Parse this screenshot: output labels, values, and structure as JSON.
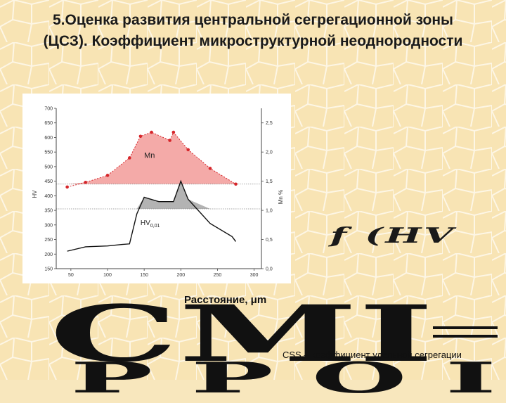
{
  "slide": {
    "title_line1": "5.Оценка развития центральной сегрегационной зоны",
    "title_line2": "(ЦСЗ). Коэффициент микроструктурной неоднородности",
    "formula_fragment": "f (HV",
    "big_text": "CMI",
    "big_text_lower": "P P O I",
    "css_caption": "CSS – коэффициент удельной сегрегации"
  },
  "chart_data": {
    "type": "line",
    "xlabel": "Расстояние, μm",
    "ylabel_left": "HV",
    "ylabel_right": "Mn %",
    "xlim": [
      30,
      310
    ],
    "ylim_left": [
      150,
      700
    ],
    "ylim_right": [
      0,
      2.75
    ],
    "x_ticks": [
      50,
      100,
      150,
      200,
      250,
      300
    ],
    "y_left_ticks": [
      150,
      200,
      250,
      300,
      350,
      400,
      450,
      500,
      550,
      600,
      650,
      700
    ],
    "y_right_ticks": [
      0,
      0.5,
      1.0,
      1.5,
      2.0,
      2.5
    ],
    "y_right_tick_labels": [
      "0,0",
      "0,5",
      "1,0",
      "1,5",
      "2,0",
      "2,5"
    ],
    "series": [
      {
        "name": "Mn",
        "axis": "right",
        "color": "#d6262b",
        "fill": "#f4aaa8",
        "fill_baseline": 1.45,
        "x": [
          45,
          70,
          100,
          130,
          145,
          160,
          185,
          190,
          210,
          240,
          275
        ],
        "y": [
          1.4,
          1.48,
          1.6,
          1.9,
          2.27,
          2.34,
          2.2,
          2.34,
          2.04,
          1.72,
          1.45
        ]
      },
      {
        "name": "HV0,01",
        "label": "HV",
        "label_sub": "0,01",
        "axis": "left",
        "color": "#111111",
        "fill": "#b3b3b3",
        "fill_baseline": 355,
        "x": [
          45,
          70,
          100,
          120,
          130,
          140,
          150,
          170,
          180,
          190,
          200,
          210,
          240,
          270,
          275
        ],
        "y": [
          210,
          225,
          228,
          233,
          235,
          338,
          395,
          380,
          380,
          380,
          450,
          388,
          305,
          260,
          243
        ]
      }
    ]
  }
}
